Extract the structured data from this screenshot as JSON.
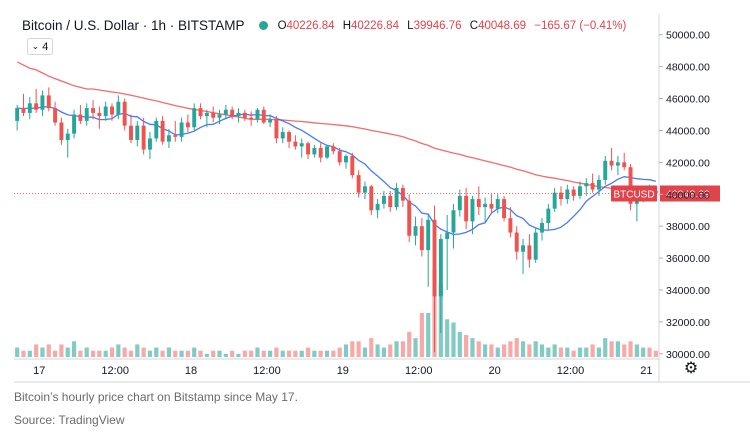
{
  "header": {
    "title": "Bitcoin / U.S. Dollar · 1h · BITSTAMP",
    "status_color": "#26a69a",
    "ohlc": {
      "o_label": "O",
      "o_value": "40226.84",
      "h_label": "H",
      "h_value": "40226.84",
      "l_label": "L",
      "l_value": "39946.76",
      "c_label": "C",
      "c_value": "40048.69",
      "change": "−165.67 (−0.41%)"
    }
  },
  "indicator_toggle": {
    "label": "4",
    "icon": "chevron-down-icon"
  },
  "settings": {
    "icon": "gear-icon"
  },
  "caption": "Bitcoin’s hourly price chart on Bitstamp since May 17.",
  "source": "Source: TradingView",
  "colors": {
    "up": "#26a69a",
    "down": "#ef5350",
    "vol_up": "#80cbc4",
    "vol_down": "#f7a9a7",
    "ma_fast": "#2962ff",
    "ma_slow": "#ef5350",
    "price_tag": "#e2434b"
  },
  "chart_data": {
    "type": "candlestick",
    "y_ticks": [
      "50000.00",
      "48000.00",
      "46000.00",
      "44000.00",
      "42000.00",
      "40000.00",
      "38000.00",
      "36000.00",
      "34000.00",
      "32000.00",
      "30000.00"
    ],
    "ylim": [
      29800,
      51300
    ],
    "x_ticks": [
      {
        "label": "17",
        "t": 4
      },
      {
        "label": "12:00",
        "t": 16
      },
      {
        "label": "18",
        "t": 28
      },
      {
        "label": "12:00",
        "t": 40
      },
      {
        "label": "19",
        "t": 52
      },
      {
        "label": "12:00",
        "t": 64
      },
      {
        "label": "20",
        "t": 76
      },
      {
        "label": "12:00",
        "t": 88
      },
      {
        "label": "21",
        "t": 100
      }
    ],
    "x_range": [
      0,
      102
    ],
    "price_label": "BTCUSD",
    "last_price": "40048.69",
    "last_close": 40048.69,
    "candles": [
      {
        "o": 44600,
        "h": 45600,
        "l": 44000,
        "c": 45400,
        "v": 3
      },
      {
        "o": 45400,
        "h": 46300,
        "l": 44900,
        "c": 45100,
        "v": 2
      },
      {
        "o": 45100,
        "h": 46100,
        "l": 44700,
        "c": 45700,
        "v": 2
      },
      {
        "o": 45700,
        "h": 46600,
        "l": 45100,
        "c": 45300,
        "v": 4
      },
      {
        "o": 45300,
        "h": 46500,
        "l": 44900,
        "c": 46200,
        "v": 3
      },
      {
        "o": 46200,
        "h": 46700,
        "l": 45200,
        "c": 45400,
        "v": 4
      },
      {
        "o": 45400,
        "h": 45800,
        "l": 44300,
        "c": 44500,
        "v": 2
      },
      {
        "o": 44500,
        "h": 44800,
        "l": 43100,
        "c": 43400,
        "v": 4
      },
      {
        "o": 43400,
        "h": 44100,
        "l": 42300,
        "c": 43800,
        "v": 3
      },
      {
        "o": 43800,
        "h": 45300,
        "l": 43500,
        "c": 45000,
        "v": 5
      },
      {
        "o": 45000,
        "h": 45600,
        "l": 44400,
        "c": 44600,
        "v": 2
      },
      {
        "o": 44600,
        "h": 45700,
        "l": 44300,
        "c": 45400,
        "v": 3
      },
      {
        "o": 45400,
        "h": 45900,
        "l": 44700,
        "c": 45100,
        "v": 2
      },
      {
        "o": 45100,
        "h": 45500,
        "l": 44100,
        "c": 44900,
        "v": 2
      },
      {
        "o": 44900,
        "h": 45800,
        "l": 44600,
        "c": 45500,
        "v": 2
      },
      {
        "o": 45500,
        "h": 45700,
        "l": 44600,
        "c": 45000,
        "v": 3
      },
      {
        "o": 45000,
        "h": 46200,
        "l": 44700,
        "c": 45800,
        "v": 4
      },
      {
        "o": 45800,
        "h": 46000,
        "l": 44000,
        "c": 44300,
        "v": 3
      },
      {
        "o": 44300,
        "h": 45000,
        "l": 43200,
        "c": 43400,
        "v": 2
      },
      {
        "o": 43400,
        "h": 44600,
        "l": 43000,
        "c": 44300,
        "v": 4
      },
      {
        "o": 44300,
        "h": 44800,
        "l": 42500,
        "c": 42800,
        "v": 3
      },
      {
        "o": 42800,
        "h": 43900,
        "l": 42200,
        "c": 43500,
        "v": 2
      },
      {
        "o": 43500,
        "h": 44800,
        "l": 43300,
        "c": 44600,
        "v": 3
      },
      {
        "o": 44600,
        "h": 44900,
        "l": 43100,
        "c": 43300,
        "v": 2
      },
      {
        "o": 43300,
        "h": 44100,
        "l": 42900,
        "c": 43700,
        "v": 3
      },
      {
        "o": 43700,
        "h": 44600,
        "l": 43300,
        "c": 43600,
        "v": 2
      },
      {
        "o": 43600,
        "h": 44800,
        "l": 43300,
        "c": 44500,
        "v": 2
      },
      {
        "o": 44500,
        "h": 45000,
        "l": 43900,
        "c": 44200,
        "v": 2
      },
      {
        "o": 44200,
        "h": 45700,
        "l": 44000,
        "c": 45400,
        "v": 3
      },
      {
        "o": 45400,
        "h": 45700,
        "l": 44700,
        "c": 44900,
        "v": 2
      },
      {
        "o": 44900,
        "h": 45300,
        "l": 44200,
        "c": 45100,
        "v": 1
      },
      {
        "o": 45100,
        "h": 45500,
        "l": 44500,
        "c": 44800,
        "v": 2
      },
      {
        "o": 44800,
        "h": 45300,
        "l": 44400,
        "c": 45000,
        "v": 2
      },
      {
        "o": 45000,
        "h": 45600,
        "l": 44700,
        "c": 45300,
        "v": 1
      },
      {
        "o": 45300,
        "h": 45500,
        "l": 44700,
        "c": 44900,
        "v": 2
      },
      {
        "o": 44900,
        "h": 45400,
        "l": 44500,
        "c": 45100,
        "v": 1
      },
      {
        "o": 45100,
        "h": 45300,
        "l": 44600,
        "c": 44800,
        "v": 2
      },
      {
        "o": 44800,
        "h": 45200,
        "l": 44300,
        "c": 44700,
        "v": 2
      },
      {
        "o": 44700,
        "h": 45400,
        "l": 44500,
        "c": 45300,
        "v": 3
      },
      {
        "o": 45300,
        "h": 45500,
        "l": 44400,
        "c": 44500,
        "v": 2
      },
      {
        "o": 44500,
        "h": 45000,
        "l": 44200,
        "c": 44700,
        "v": 2
      },
      {
        "o": 44700,
        "h": 44900,
        "l": 43200,
        "c": 43500,
        "v": 3
      },
      {
        "o": 43500,
        "h": 44200,
        "l": 43200,
        "c": 43900,
        "v": 2
      },
      {
        "o": 43900,
        "h": 44000,
        "l": 42900,
        "c": 43300,
        "v": 2
      },
      {
        "o": 43300,
        "h": 43700,
        "l": 42800,
        "c": 43000,
        "v": 2
      },
      {
        "o": 43000,
        "h": 43500,
        "l": 42300,
        "c": 43200,
        "v": 2
      },
      {
        "o": 43200,
        "h": 43300,
        "l": 42200,
        "c": 42500,
        "v": 3
      },
      {
        "o": 42500,
        "h": 43100,
        "l": 42300,
        "c": 42900,
        "v": 2
      },
      {
        "o": 42900,
        "h": 43200,
        "l": 42000,
        "c": 42300,
        "v": 2
      },
      {
        "o": 42300,
        "h": 43100,
        "l": 42200,
        "c": 43000,
        "v": 2
      },
      {
        "o": 43000,
        "h": 43200,
        "l": 42500,
        "c": 42700,
        "v": 2
      },
      {
        "o": 42700,
        "h": 42900,
        "l": 41800,
        "c": 42000,
        "v": 3
      },
      {
        "o": 42000,
        "h": 42500,
        "l": 41600,
        "c": 42400,
        "v": 4
      },
      {
        "o": 42400,
        "h": 42600,
        "l": 41000,
        "c": 41200,
        "v": 5
      },
      {
        "o": 41200,
        "h": 41500,
        "l": 39800,
        "c": 40100,
        "v": 5
      },
      {
        "o": 40100,
        "h": 40800,
        "l": 39700,
        "c": 40500,
        "v": 3
      },
      {
        "o": 40500,
        "h": 40600,
        "l": 38700,
        "c": 39000,
        "v": 6
      },
      {
        "o": 39000,
        "h": 39700,
        "l": 38500,
        "c": 39400,
        "v": 4
      },
      {
        "o": 39400,
        "h": 40200,
        "l": 39100,
        "c": 39900,
        "v": 3
      },
      {
        "o": 39900,
        "h": 40200,
        "l": 38900,
        "c": 39200,
        "v": 4
      },
      {
        "o": 39200,
        "h": 40700,
        "l": 39000,
        "c": 40400,
        "v": 5
      },
      {
        "o": 40400,
        "h": 40600,
        "l": 39200,
        "c": 39600,
        "v": 5
      },
      {
        "o": 39600,
        "h": 40000,
        "l": 37000,
        "c": 37400,
        "v": 8
      },
      {
        "o": 37400,
        "h": 38600,
        "l": 36800,
        "c": 38000,
        "v": 6
      },
      {
        "o": 38000,
        "h": 38500,
        "l": 36100,
        "c": 36500,
        "v": 14
      },
      {
        "o": 36500,
        "h": 38800,
        "l": 34200,
        "c": 38400,
        "v": 14
      },
      {
        "o": 38400,
        "h": 39300,
        "l": 30100,
        "c": 33600,
        "v": 28
      },
      {
        "o": 33600,
        "h": 37500,
        "l": 31300,
        "c": 37200,
        "v": 23
      },
      {
        "o": 37200,
        "h": 38700,
        "l": 34000,
        "c": 37600,
        "v": 12
      },
      {
        "o": 37600,
        "h": 39400,
        "l": 36600,
        "c": 39000,
        "v": 11
      },
      {
        "o": 39000,
        "h": 40300,
        "l": 38600,
        "c": 39900,
        "v": 8
      },
      {
        "o": 39900,
        "h": 40400,
        "l": 37800,
        "c": 38300,
        "v": 7
      },
      {
        "o": 38300,
        "h": 39900,
        "l": 37500,
        "c": 39700,
        "v": 6
      },
      {
        "o": 39700,
        "h": 40500,
        "l": 38700,
        "c": 39200,
        "v": 5
      },
      {
        "o": 39200,
        "h": 39800,
        "l": 38200,
        "c": 39400,
        "v": 4
      },
      {
        "o": 39400,
        "h": 40000,
        "l": 38800,
        "c": 39100,
        "v": 4
      },
      {
        "o": 39100,
        "h": 40000,
        "l": 38800,
        "c": 39700,
        "v": 3
      },
      {
        "o": 39700,
        "h": 39900,
        "l": 38300,
        "c": 38500,
        "v": 4
      },
      {
        "o": 38500,
        "h": 39200,
        "l": 37300,
        "c": 37600,
        "v": 5
      },
      {
        "o": 37600,
        "h": 38000,
        "l": 35900,
        "c": 36400,
        "v": 6
      },
      {
        "o": 36400,
        "h": 37200,
        "l": 35000,
        "c": 36800,
        "v": 5
      },
      {
        "o": 36800,
        "h": 37500,
        "l": 35400,
        "c": 35900,
        "v": 4
      },
      {
        "o": 35900,
        "h": 37900,
        "l": 35700,
        "c": 37600,
        "v": 5
      },
      {
        "o": 37600,
        "h": 38500,
        "l": 37100,
        "c": 38200,
        "v": 4
      },
      {
        "o": 38200,
        "h": 39400,
        "l": 37800,
        "c": 39100,
        "v": 3
      },
      {
        "o": 39100,
        "h": 40400,
        "l": 38900,
        "c": 40100,
        "v": 4
      },
      {
        "o": 40100,
        "h": 40500,
        "l": 39300,
        "c": 39700,
        "v": 3
      },
      {
        "o": 39700,
        "h": 40600,
        "l": 39400,
        "c": 40300,
        "v": 3
      },
      {
        "o": 40300,
        "h": 40500,
        "l": 39600,
        "c": 39900,
        "v": 2
      },
      {
        "o": 39900,
        "h": 40800,
        "l": 39700,
        "c": 40500,
        "v": 3
      },
      {
        "o": 40500,
        "h": 41000,
        "l": 39900,
        "c": 40700,
        "v": 3
      },
      {
        "o": 40700,
        "h": 41300,
        "l": 40100,
        "c": 40300,
        "v": 4
      },
      {
        "o": 40300,
        "h": 41200,
        "l": 39900,
        "c": 40900,
        "v": 3
      },
      {
        "o": 40900,
        "h": 42400,
        "l": 40600,
        "c": 42100,
        "v": 6
      },
      {
        "o": 42100,
        "h": 42900,
        "l": 41500,
        "c": 41800,
        "v": 5
      },
      {
        "o": 41800,
        "h": 42400,
        "l": 41200,
        "c": 42000,
        "v": 5
      },
      {
        "o": 42000,
        "h": 42600,
        "l": 41500,
        "c": 41700,
        "v": 4
      },
      {
        "o": 41700,
        "h": 41900,
        "l": 39000,
        "c": 39400,
        "v": 5
      },
      {
        "o": 39400,
        "h": 40200,
        "l": 38300,
        "c": 39900,
        "v": 4
      },
      {
        "o": 39900,
        "h": 40500,
        "l": 39500,
        "c": 40300,
        "v": 3
      },
      {
        "o": 40300,
        "h": 40600,
        "l": 39800,
        "c": 40100,
        "v": 3
      },
      {
        "o": 40226.84,
        "h": 40226.84,
        "l": 39946.76,
        "c": 40048.69,
        "v": 2
      }
    ],
    "ma_fast_period": 9,
    "ma_slow_period": 60,
    "ma_slow_start": [
      48300,
      48100,
      47900,
      47800,
      47600,
      47400,
      47250,
      47100,
      46950,
      46800,
      46700,
      46600
    ]
  }
}
